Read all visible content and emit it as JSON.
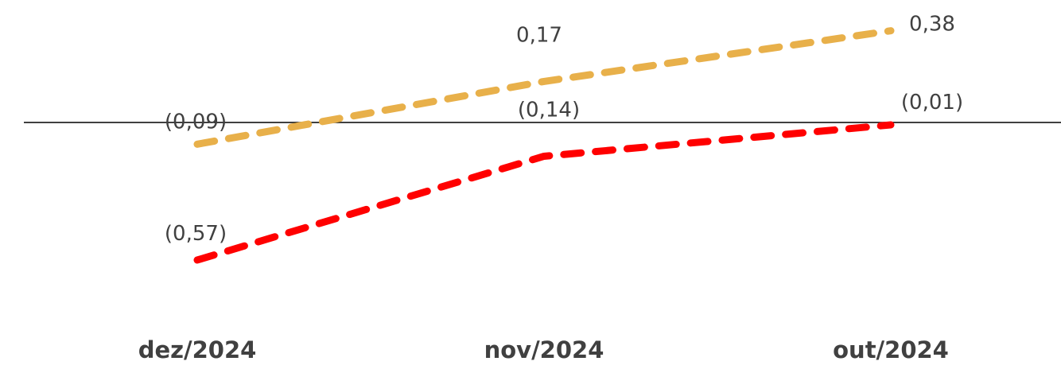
{
  "chart_data": {
    "type": "line",
    "categories": [
      "dez/2024",
      "nov/2024",
      "out/2024"
    ],
    "series": [
      {
        "values": [
          -0.09,
          0.17,
          0.38
        ],
        "labels": [
          "(0,09)",
          "0,17",
          "0,38"
        ],
        "color": "#E8B04A",
        "line_style": "dashed"
      },
      {
        "values": [
          -0.57,
          -0.14,
          -0.01
        ],
        "labels": [
          "(0,57)",
          "(0,14)",
          "(0,01)"
        ],
        "color": "#FF0000",
        "line_style": "dashed"
      }
    ],
    "title": "",
    "xlabel": "",
    "ylabel": "",
    "ylim": [
      -0.9,
      0.6
    ],
    "zero_line": true,
    "grid": false,
    "legend": "none"
  }
}
